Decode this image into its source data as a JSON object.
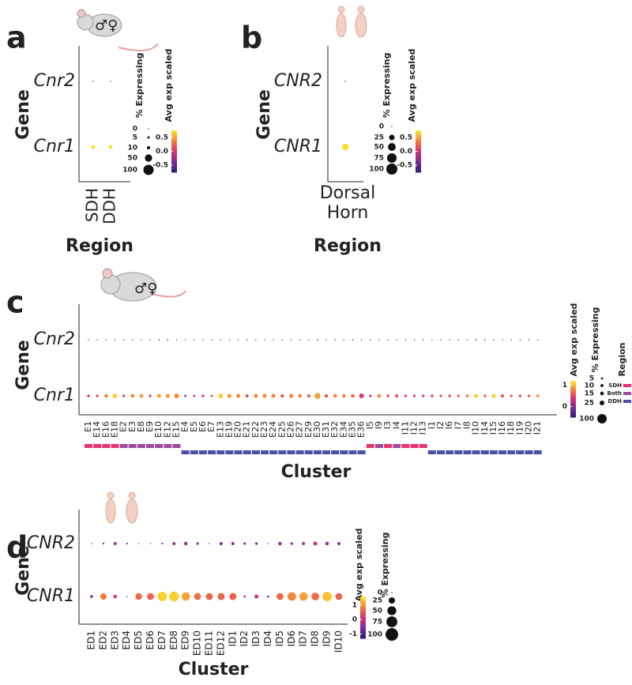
{
  "chart_data": [
    {
      "type": "dot",
      "panel": "a",
      "icon_label": "♂♀",
      "y_label": "Gene",
      "x_label": "Region",
      "categories": [
        "SDH",
        "DDH"
      ],
      "series": [
        {
          "name": "Cnr2",
          "pct": [
            1,
            1
          ],
          "avg": [
            -0.5,
            -0.5
          ]
        },
        {
          "name": "Cnr1",
          "pct": [
            15,
            15
          ],
          "avg": [
            0.7,
            0.7
          ]
        }
      ],
      "size_title": "% Expressing",
      "size_ticks": [
        0,
        5,
        10,
        50,
        100
      ],
      "color_title": "Avg exp scaled",
      "clim": [
        -0.75,
        0.75
      ],
      "color_ticks": [
        0.5,
        {
          "value": 0,
          "label": "0.0"
        },
        -0.5
      ],
      "colormap": [
        "#2d1e78",
        "#7b2a9a",
        "#d6336f",
        "#f5803b",
        "#f9ee30"
      ]
    },
    {
      "type": "dot",
      "panel": "b",
      "y_label": "Gene",
      "x_label": "Region",
      "categories": [
        "Dorsal Horn"
      ],
      "series": [
        {
          "name": "CNR2",
          "pct": [
            1
          ],
          "avg": [
            -0.7
          ]
        },
        {
          "name": "CNR1",
          "pct": [
            35
          ],
          "avg": [
            0.7
          ]
        }
      ],
      "size_title": "% Expressing",
      "size_ticks": [
        0,
        25,
        50,
        75,
        100
      ],
      "color_title": "Avg exp scaled",
      "clim": [
        -0.75,
        0.75
      ],
      "color_ticks": [
        0.5,
        {
          "value": 0,
          "label": "0.0"
        },
        -0.5
      ],
      "colormap": [
        "#2d1e78",
        "#7b2a9a",
        "#d6336f",
        "#f5803b",
        "#f9ee30"
      ]
    },
    {
      "type": "dot",
      "panel": "c",
      "icon_label": "♂♀",
      "y_label": "Gene",
      "x_label": "Cluster",
      "categories": [
        "E1",
        "E14",
        "E16",
        "E18",
        "E2",
        "E3",
        "E8",
        "E9",
        "E10",
        "E12",
        "E15",
        "E4",
        "E5",
        "E6",
        "E7",
        "E13",
        "E19",
        "E20",
        "E21",
        "E22",
        "E23",
        "E24",
        "E25",
        "E26",
        "E27",
        "E29",
        "E30",
        "E31",
        "E32",
        "E34",
        "E35",
        "E36",
        "I5",
        "I9",
        "I3",
        "I4",
        "I11",
        "I12",
        "I13",
        "I1",
        "I2",
        "I6",
        "I7",
        "I8",
        "I10",
        "I14",
        "I15",
        "I16",
        "I18",
        "I19",
        "I20",
        "I21"
      ],
      "regions": [
        "SDH",
        "SDH",
        "SDH",
        "SDH",
        "Both",
        "Both",
        "Both",
        "Both",
        "Both",
        "Both",
        "Both",
        "DDH",
        "DDH",
        "DDH",
        "DDH",
        "DDH",
        "DDH",
        "DDH",
        "DDH",
        "DDH",
        "DDH",
        "DDH",
        "DDH",
        "DDH",
        "DDH",
        "DDH",
        "DDH",
        "DDH",
        "DDH",
        "DDH",
        "DDH",
        "DDH",
        "SDH",
        "Both",
        "SDH",
        "Both",
        "SDH",
        "SDH",
        "SDH",
        "DDH",
        "DDH",
        "DDH",
        "DDH",
        "DDH",
        "DDH",
        "DDH",
        "DDH",
        "DDH",
        "DDH",
        "DDH",
        "DDH",
        "DDH"
      ],
      "series": [
        {
          "name": "Cnr2",
          "pct": [
            1,
            1,
            1,
            1,
            1,
            1,
            1,
            1,
            2,
            2,
            1,
            1,
            1,
            1,
            1,
            1,
            1,
            1,
            1,
            1,
            1,
            1,
            1,
            1,
            1,
            1,
            2,
            1,
            1,
            1,
            1,
            1,
            1,
            1,
            1,
            1,
            1,
            1,
            1,
            1,
            1,
            1,
            1,
            1,
            2,
            2,
            1,
            1,
            1,
            1,
            1,
            1
          ],
          "avg": [
            -0.3,
            -0.3,
            -0.3,
            -0.3,
            -0.3,
            -0.3,
            -0.3,
            -0.3,
            -0.2,
            -0.2,
            -0.3,
            -0.3,
            -0.3,
            -0.3,
            -0.3,
            -0.3,
            -0.3,
            -0.3,
            -0.3,
            -0.3,
            -0.3,
            -0.3,
            -0.3,
            -0.3,
            -0.3,
            -0.3,
            -0.2,
            -0.3,
            -0.3,
            -0.3,
            -0.3,
            -0.3,
            -0.3,
            -0.3,
            -0.3,
            -0.3,
            -0.3,
            -0.3,
            -0.3,
            -0.3,
            -0.3,
            -0.3,
            -0.3,
            -0.3,
            -0.2,
            -0.2,
            -0.3,
            -0.3,
            -0.3,
            -0.3,
            -0.3,
            -0.3
          ]
        },
        {
          "name": "Cnr1",
          "pct": [
            8,
            8,
            15,
            25,
            8,
            15,
            18,
            8,
            18,
            20,
            25,
            5,
            5,
            8,
            5,
            25,
            20,
            18,
            12,
            18,
            18,
            18,
            12,
            18,
            15,
            12,
            40,
            12,
            15,
            15,
            15,
            25,
            8,
            15,
            8,
            12,
            8,
            8,
            8,
            8,
            8,
            8,
            8,
            8,
            18,
            8,
            20,
            12,
            8,
            8,
            8,
            12
          ],
          "avg": [
            0.4,
            0.5,
            0.8,
            1.1,
            0.5,
            0.8,
            0.9,
            0.5,
            0.9,
            0.9,
            0.8,
            -0.2,
            0.2,
            0.4,
            0.3,
            1.1,
            0.9,
            0.8,
            0.5,
            0.8,
            0.8,
            0.8,
            0.5,
            0.8,
            0.8,
            0.6,
            0.9,
            0.5,
            0.8,
            0.8,
            0.7,
            0.4,
            0.4,
            0.8,
            0.4,
            0.5,
            0.5,
            0.4,
            0.5,
            0.4,
            0.6,
            0.5,
            0.6,
            0.6,
            1.1,
            0.6,
            1.1,
            0.5,
            0.6,
            0.5,
            0.6,
            0.9
          ]
        }
      ],
      "color_title": "Avg exp scaled",
      "clim": [
        -0.5,
        1.2
      ],
      "color_ticks": [
        1,
        0
      ],
      "size_title": "% Expressing",
      "size_ticks": [
        5,
        10,
        15,
        25,
        100
      ],
      "region_title": "Region",
      "region_legend": [
        {
          "name": "SDH",
          "color": "#e8336d"
        },
        {
          "name": "Both",
          "color": "#9c4a9e"
        },
        {
          "name": "DDH",
          "color": "#4b4fa8"
        }
      ],
      "colormap": [
        "#2d1e78",
        "#7b2a9a",
        "#d6336f",
        "#f5803b",
        "#f9ee30"
      ]
    },
    {
      "type": "dot",
      "panel": "d",
      "y_label": "Gene",
      "x_label": "Cluster",
      "categories": [
        "ED1",
        "ED2",
        "ED3",
        "ED4",
        "ED5",
        "ED6",
        "ED7",
        "ED8",
        "ED9",
        "ED10",
        "ED11",
        "ED12",
        "ID1",
        "ID2",
        "ID3",
        "ID4",
        "ID5",
        "ID6",
        "ID7",
        "ID8",
        "ID9",
        "ID10"
      ],
      "series": [
        {
          "name": "CNR2",
          "pct": [
            0,
            2,
            6,
            2,
            0,
            0,
            2,
            6,
            8,
            4,
            0,
            6,
            6,
            4,
            4,
            0,
            8,
            4,
            6,
            10,
            8,
            6
          ],
          "avg": [
            -0.8,
            -0.8,
            -0.3,
            -0.8,
            -0.8,
            -0.8,
            -0.6,
            -0.3,
            -0.3,
            -0.5,
            -0.8,
            -0.5,
            -0.5,
            -0.5,
            -0.6,
            -0.8,
            -0.2,
            -0.5,
            -0.3,
            0,
            -0.3,
            -0.4
          ]
        },
        {
          "name": "CNR1",
          "pct": [
            5,
            25,
            8,
            1,
            28,
            30,
            55,
            60,
            45,
            30,
            30,
            32,
            32,
            3,
            10,
            3,
            30,
            45,
            45,
            38,
            55,
            30
          ],
          "avg": [
            -0.7,
            0.8,
            0.2,
            -0.8,
            0.7,
            0.6,
            1.4,
            1.4,
            1.1,
            0.7,
            0.6,
            0.6,
            0.6,
            -0.2,
            0.1,
            -0.6,
            0.7,
            0.9,
            1.1,
            0.7,
            1.3,
            0.6
          ]
        }
      ],
      "color_title": "Avg exp scaled",
      "clim": [
        -1.3,
        1.6
      ],
      "color_ticks": [
        1,
        0,
        -1
      ],
      "size_title": "% Expressing",
      "size_ticks": [
        0,
        25,
        50,
        75,
        100
      ],
      "colormap": [
        "#2d1e78",
        "#7b2a9a",
        "#d6336f",
        "#f5803b",
        "#f9ee30"
      ]
    }
  ]
}
